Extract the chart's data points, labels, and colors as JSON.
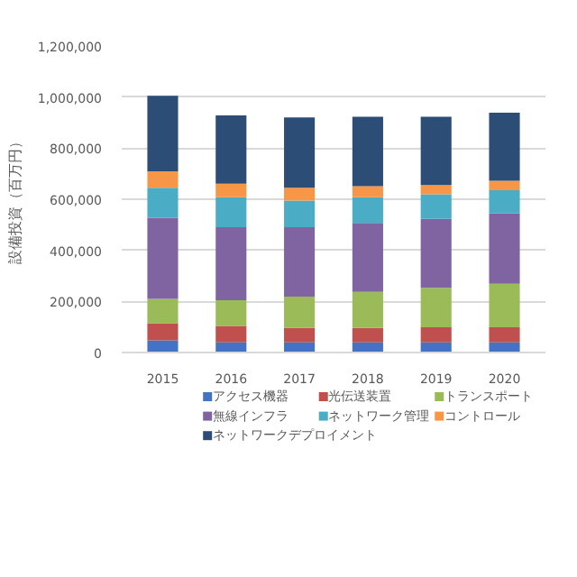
{
  "chart_data": {
    "type": "bar",
    "stacked": true,
    "ylabel": "設備投資（百万円）",
    "categories": [
      "2015",
      "2016",
      "2017",
      "2018",
      "2019",
      "2020"
    ],
    "series": [
      {
        "name": "アクセス機器",
        "color": "#4472c4",
        "values": [
          48000,
          40000,
          40000,
          40000,
          40000,
          40000
        ]
      },
      {
        "name": "光伝送装置",
        "color": "#c0504d",
        "values": [
          67000,
          64000,
          56000,
          56000,
          59000,
          59000
        ]
      },
      {
        "name": "トランスポート",
        "color": "#9bbb59",
        "values": [
          95000,
          101000,
          123000,
          141000,
          154000,
          170000
        ]
      },
      {
        "name": "無線インフラ",
        "color": "#8064a2",
        "values": [
          318000,
          286000,
          272000,
          270000,
          270000,
          275000
        ]
      },
      {
        "name": "ネットワーク管理",
        "color": "#4bacc6",
        "values": [
          117000,
          117000,
          104000,
          101000,
          96000,
          91000
        ]
      },
      {
        "name": "コントロール",
        "color": "#f79646",
        "values": [
          64000,
          53000,
          50000,
          43000,
          37000,
          37000
        ]
      },
      {
        "name": "ネットワークデプロイメント",
        "color": "#2c4d75",
        "values": [
          296000,
          267000,
          275000,
          272000,
          267000,
          267000
        ]
      }
    ],
    "ylim": [
      0,
      1200000
    ],
    "yticks": [
      0,
      {
        "value": 200000,
        "label": "200,000"
      },
      {
        "value": 400000,
        "label": "400,000"
      },
      {
        "value": 600000,
        "label": "600,000"
      },
      {
        "value": 800000,
        "label": "800,000"
      },
      {
        "value": 1000000,
        "label": "1,000,000"
      },
      {
        "value": 1200000,
        "label": "1,200,000"
      }
    ],
    "grid": "y",
    "legend": "bottom"
  }
}
